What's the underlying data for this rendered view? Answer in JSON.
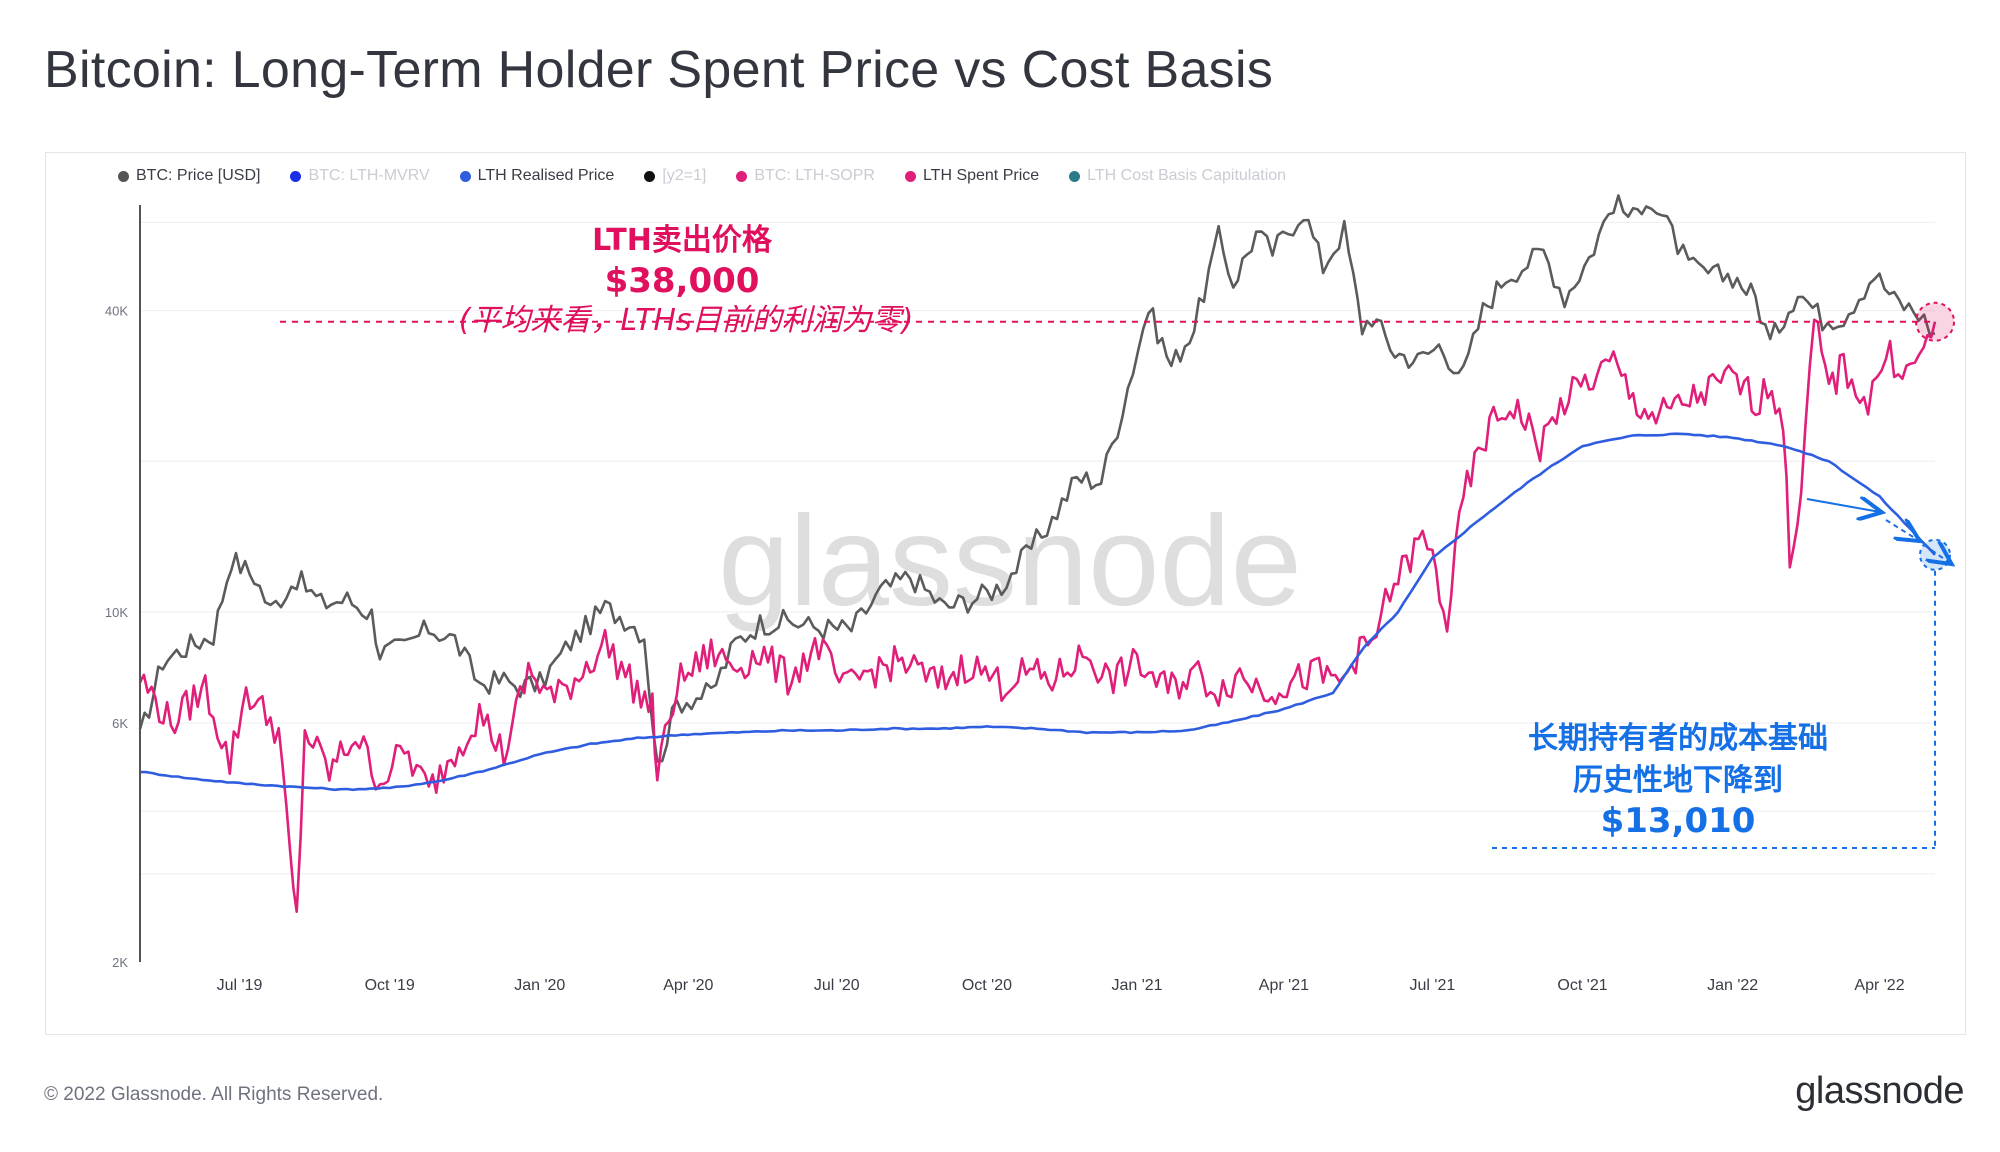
{
  "title": "Bitcoin: Long-Term Holder Spent Price vs Cost Basis",
  "footer": {
    "copyright": "© 2022 Glassnode. All Rights Reserved.",
    "logo_text": "glassnode"
  },
  "watermark": "glassnode",
  "colors": {
    "price": "#5b5b5b",
    "realised": "#2f5de0",
    "spent": "#e01f7a",
    "mvrv": "#1b2fe8",
    "ref": "#111111",
    "capitulation": "#2b7a8c",
    "annot_red": "#e0105f",
    "annot_blue": "#1570e6"
  },
  "legend": [
    {
      "label": "BTC: Price [USD]",
      "color": "#555555",
      "active": true
    },
    {
      "label": "BTC: LTH-MVRV",
      "color": "#1b2fe8",
      "active": false
    },
    {
      "label": "LTH Realised Price",
      "color": "#2f5de0",
      "active": true
    },
    {
      "label": "[y2=1]",
      "color": "#111111",
      "active": false
    },
    {
      "label": "BTC: LTH-SOPR",
      "color": "#e01f7a",
      "active": false
    },
    {
      "label": "LTH Spent Price",
      "color": "#e01f7a",
      "active": true
    },
    {
      "label": "LTH Cost Basis Capitulation",
      "color": "#2b7a8c",
      "active": false
    }
  ],
  "annotations": {
    "spent_title": "LTH卖出价格",
    "spent_value": "$38,000",
    "spent_note": "(平均来看，LTHs目前的利润为零)",
    "basis_line1": "长期持有者的成本基础",
    "basis_line2": "历史性地下降到",
    "basis_value": "$13,010"
  },
  "chart_data": {
    "type": "line",
    "title": "Bitcoin: Long-Term Holder Spent Price vs Cost Basis",
    "y_scale": "log",
    "ylim": [
      2000,
      65000
    ],
    "y_ticks": [
      {
        "value": 2000,
        "label": "2K"
      },
      {
        "value": 6000,
        "label": "6K"
      },
      {
        "value": 10000,
        "label": "10K"
      },
      {
        "value": 40000,
        "label": "40K"
      }
    ],
    "xlim": [
      "2019-05-01",
      "2022-05-05"
    ],
    "x_ticks": [
      {
        "date": "2019-07-01",
        "label": "Jul '19"
      },
      {
        "date": "2019-10-01",
        "label": "Oct '19"
      },
      {
        "date": "2020-01-01",
        "label": "Jan '20"
      },
      {
        "date": "2020-04-01",
        "label": "Apr '20"
      },
      {
        "date": "2020-07-01",
        "label": "Jul '20"
      },
      {
        "date": "2020-10-01",
        "label": "Oct '20"
      },
      {
        "date": "2021-01-01",
        "label": "Jan '21"
      },
      {
        "date": "2021-04-01",
        "label": "Apr '21"
      },
      {
        "date": "2021-07-01",
        "label": "Jul '21"
      },
      {
        "date": "2021-10-01",
        "label": "Oct '21"
      },
      {
        "date": "2022-01-01",
        "label": "Jan '22"
      },
      {
        "date": "2022-04-01",
        "label": "Apr '22"
      }
    ],
    "grid": true,
    "legend_position": "top-left",
    "series": [
      {
        "name": "BTC: Price [USD]",
        "color": "#5b5b5b",
        "points": [
          [
            "2019-05-01",
            5600
          ],
          [
            "2019-05-15",
            8000
          ],
          [
            "2019-06-01",
            8600
          ],
          [
            "2019-06-15",
            9000
          ],
          [
            "2019-06-26",
            12800
          ],
          [
            "2019-07-10",
            11800
          ],
          [
            "2019-07-20",
            10100
          ],
          [
            "2019-08-05",
            11700
          ],
          [
            "2019-08-20",
            10400
          ],
          [
            "2019-09-05",
            10600
          ],
          [
            "2019-09-20",
            9900
          ],
          [
            "2019-09-25",
            8300
          ],
          [
            "2019-10-10",
            8500
          ],
          [
            "2019-10-25",
            9300
          ],
          [
            "2019-11-10",
            8800
          ],
          [
            "2019-11-25",
            7200
          ],
          [
            "2019-12-10",
            7300
          ],
          [
            "2019-12-20",
            7100
          ],
          [
            "2020-01-01",
            7200
          ],
          [
            "2020-01-20",
            8700
          ],
          [
            "2020-02-10",
            10200
          ],
          [
            "2020-02-25",
            9600
          ],
          [
            "2020-03-05",
            9000
          ],
          [
            "2020-03-13",
            4900
          ],
          [
            "2020-03-25",
            6600
          ],
          [
            "2020-04-15",
            6900
          ],
          [
            "2020-04-30",
            8700
          ],
          [
            "2020-05-15",
            9500
          ],
          [
            "2020-06-01",
            9600
          ],
          [
            "2020-06-20",
            9300
          ],
          [
            "2020-07-10",
            9250
          ],
          [
            "2020-07-28",
            11000
          ],
          [
            "2020-08-15",
            11800
          ],
          [
            "2020-09-05",
            10200
          ],
          [
            "2020-09-25",
            10700
          ],
          [
            "2020-10-10",
            11300
          ],
          [
            "2020-10-25",
            13000
          ],
          [
            "2020-11-10",
            15300
          ],
          [
            "2020-11-25",
            18500
          ],
          [
            "2020-12-10",
            18300
          ],
          [
            "2020-12-20",
            23500
          ],
          [
            "2021-01-08",
            40500
          ],
          [
            "2021-01-22",
            31000
          ],
          [
            "2021-02-05",
            37000
          ],
          [
            "2021-02-20",
            56000
          ],
          [
            "2021-03-01",
            45500
          ],
          [
            "2021-03-15",
            57000
          ],
          [
            "2021-03-25",
            52500
          ],
          [
            "2021-04-13",
            63500
          ],
          [
            "2021-04-25",
            49000
          ],
          [
            "2021-05-08",
            58000
          ],
          [
            "2021-05-19",
            37000
          ],
          [
            "2021-05-25",
            39000
          ],
          [
            "2021-06-08",
            33000
          ],
          [
            "2021-06-22",
            31800
          ],
          [
            "2021-07-05",
            34000
          ],
          [
            "2021-07-20",
            29800
          ],
          [
            "2021-08-01",
            40000
          ],
          [
            "2021-08-15",
            47000
          ],
          [
            "2021-08-25",
            49000
          ],
          [
            "2021-09-07",
            52500
          ],
          [
            "2021-09-20",
            42500
          ],
          [
            "2021-10-05",
            51000
          ],
          [
            "2021-10-20",
            66000
          ],
          [
            "2021-11-01",
            61000
          ],
          [
            "2021-11-09",
            68000
          ],
          [
            "2021-11-25",
            57000
          ],
          [
            "2021-12-05",
            49000
          ],
          [
            "2021-12-20",
            47000
          ],
          [
            "2022-01-01",
            47000
          ],
          [
            "2022-01-15",
            42500
          ],
          [
            "2022-01-24",
            34500
          ],
          [
            "2022-02-10",
            44000
          ],
          [
            "2022-02-25",
            38500
          ],
          [
            "2022-03-10",
            39000
          ],
          [
            "2022-03-29",
            47500
          ],
          [
            "2022-04-10",
            42000
          ],
          [
            "2022-04-25",
            39500
          ],
          [
            "2022-05-05",
            36000
          ]
        ]
      },
      {
        "name": "LTH Realised Price",
        "color": "#2f5de0",
        "points": [
          [
            "2019-05-01",
            4800
          ],
          [
            "2019-06-01",
            4650
          ],
          [
            "2019-07-01",
            4550
          ],
          [
            "2019-08-01",
            4480
          ],
          [
            "2019-09-01",
            4420
          ],
          [
            "2019-10-01",
            4450
          ],
          [
            "2019-11-01",
            4600
          ],
          [
            "2019-12-01",
            4850
          ],
          [
            "2020-01-01",
            5200
          ],
          [
            "2020-02-01",
            5450
          ],
          [
            "2020-03-01",
            5600
          ],
          [
            "2020-04-01",
            5700
          ],
          [
            "2020-05-01",
            5750
          ],
          [
            "2020-06-01",
            5800
          ],
          [
            "2020-07-01",
            5800
          ],
          [
            "2020-08-01",
            5850
          ],
          [
            "2020-09-01",
            5850
          ],
          [
            "2020-10-01",
            5900
          ],
          [
            "2020-11-01",
            5850
          ],
          [
            "2020-12-01",
            5750
          ],
          [
            "2021-01-01",
            5750
          ],
          [
            "2021-02-01",
            5800
          ],
          [
            "2021-03-01",
            6050
          ],
          [
            "2021-04-01",
            6400
          ],
          [
            "2021-05-01",
            6900
          ],
          [
            "2021-05-20",
            8500
          ],
          [
            "2021-06-10",
            10000
          ],
          [
            "2021-07-01",
            12800
          ],
          [
            "2021-08-01",
            15500
          ],
          [
            "2021-09-01",
            18500
          ],
          [
            "2021-10-01",
            21500
          ],
          [
            "2021-11-01",
            22500
          ],
          [
            "2021-12-01",
            22700
          ],
          [
            "2022-01-01",
            22300
          ],
          [
            "2022-02-01",
            21500
          ],
          [
            "2022-03-01",
            20000
          ],
          [
            "2022-04-01",
            17000
          ],
          [
            "2022-05-05",
            13010
          ]
        ]
      },
      {
        "name": "LTH Spent Price",
        "color": "#e01f7a",
        "points": [
          [
            "2019-05-01",
            7400
          ],
          [
            "2019-05-20",
            6000
          ],
          [
            "2019-06-10",
            7100
          ],
          [
            "2019-06-25",
            5000
          ],
          [
            "2019-07-05",
            7000
          ],
          [
            "2019-07-25",
            5800
          ],
          [
            "2019-08-01",
            3200
          ],
          [
            "2019-08-05",
            2400
          ],
          [
            "2019-08-10",
            5800
          ],
          [
            "2019-08-25",
            4800
          ],
          [
            "2019-09-10",
            5700
          ],
          [
            "2019-09-25",
            4600
          ],
          [
            "2019-10-10",
            5300
          ],
          [
            "2019-10-25",
            4400
          ],
          [
            "2019-11-10",
            5300
          ],
          [
            "2019-11-25",
            6300
          ],
          [
            "2019-12-10",
            5200
          ],
          [
            "2019-12-25",
            7600
          ],
          [
            "2020-01-10",
            6700
          ],
          [
            "2020-01-25",
            7500
          ],
          [
            "2020-02-10",
            8700
          ],
          [
            "2020-02-25",
            7300
          ],
          [
            "2020-03-10",
            6400
          ],
          [
            "2020-03-13",
            4700
          ],
          [
            "2020-03-25",
            7200
          ],
          [
            "2020-04-15",
            8300
          ],
          [
            "2020-05-01",
            7800
          ],
          [
            "2020-05-15",
            8300
          ],
          [
            "2020-06-01",
            7400
          ],
          [
            "2020-06-20",
            8600
          ],
          [
            "2020-07-05",
            7000
          ],
          [
            "2020-07-20",
            7600
          ],
          [
            "2020-08-10",
            8000
          ],
          [
            "2020-09-01",
            7200
          ],
          [
            "2020-09-20",
            7900
          ],
          [
            "2020-10-10",
            7200
          ],
          [
            "2020-10-25",
            7600
          ],
          [
            "2020-11-10",
            7300
          ],
          [
            "2020-12-01",
            8300
          ],
          [
            "2020-12-15",
            7300
          ],
          [
            "2021-01-01",
            7900
          ],
          [
            "2021-01-20",
            7000
          ],
          [
            "2021-02-05",
            7600
          ],
          [
            "2021-02-20",
            7000
          ],
          [
            "2021-03-05",
            7500
          ],
          [
            "2021-03-20",
            7000
          ],
          [
            "2021-04-05",
            7200
          ],
          [
            "2021-04-20",
            7600
          ],
          [
            "2021-05-05",
            7200
          ],
          [
            "2021-05-15",
            8200
          ],
          [
            "2021-05-25",
            8600
          ],
          [
            "2021-06-05",
            11000
          ],
          [
            "2021-06-15",
            12500
          ],
          [
            "2021-06-25",
            14000
          ],
          [
            "2021-07-01",
            12800
          ],
          [
            "2021-07-10",
            9500
          ],
          [
            "2021-07-20",
            17000
          ],
          [
            "2021-08-05",
            23500
          ],
          [
            "2021-08-20",
            26000
          ],
          [
            "2021-09-05",
            21500
          ],
          [
            "2021-09-20",
            26500
          ],
          [
            "2021-10-05",
            29000
          ],
          [
            "2021-10-20",
            31500
          ],
          [
            "2021-11-01",
            26500
          ],
          [
            "2021-11-15",
            24500
          ],
          [
            "2021-12-01",
            26000
          ],
          [
            "2021-12-15",
            27500
          ],
          [
            "2022-01-01",
            29500
          ],
          [
            "2022-01-15",
            26500
          ],
          [
            "2022-01-25",
            28500
          ],
          [
            "2022-02-01",
            24000
          ],
          [
            "2022-02-05",
            12500
          ],
          [
            "2022-02-12",
            18000
          ],
          [
            "2022-02-20",
            38000
          ],
          [
            "2022-03-01",
            28000
          ],
          [
            "2022-03-10",
            31000
          ],
          [
            "2022-03-25",
            26000
          ],
          [
            "2022-04-05",
            33000
          ],
          [
            "2022-04-20",
            30000
          ],
          [
            "2022-04-28",
            33500
          ],
          [
            "2022-05-05",
            38000
          ]
        ]
      }
    ],
    "annotations": [
      {
        "type": "hline",
        "y": 38000,
        "label": "$38,000"
      },
      {
        "type": "point",
        "date": "2022-05-05",
        "y": 38000
      },
      {
        "type": "point",
        "date": "2022-05-05",
        "y": 13010
      }
    ]
  }
}
